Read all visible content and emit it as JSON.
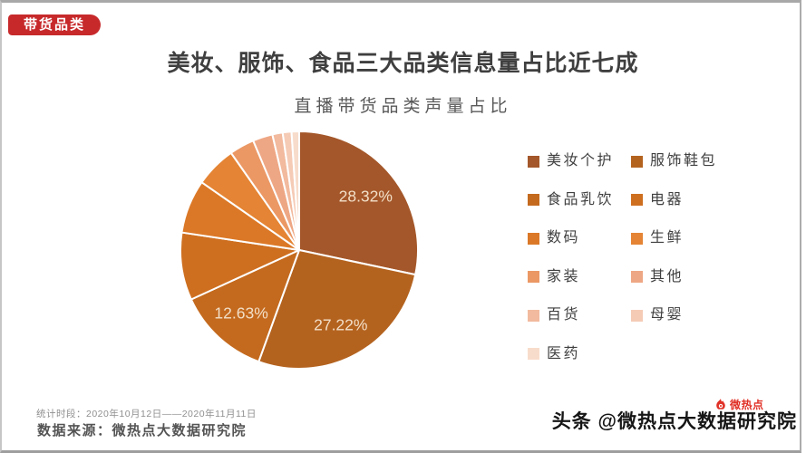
{
  "page": {
    "badge": "带货品类",
    "title": "美妆、服饰、食品三大品类信息量占比近七成",
    "footer": {
      "period": "统计时段：2020年10月12日——2020年11月11日",
      "source": "数据来源：微热点大数据研究院"
    },
    "watermark": {
      "logo_text": "微热点",
      "handle": "头条 @微热点大数据研究院"
    },
    "colors": {
      "badge_red": "#C7292B",
      "logo_red": "#E03127",
      "title_gray": "#3F3F3F",
      "subtitle_gray": "#595959"
    }
  },
  "chart_data": {
    "type": "pie",
    "title": "直播带货品类声量占比",
    "legend_position": "right",
    "legend_columns": 2,
    "categories": [
      "美妆个护",
      "服饰鞋包",
      "食品乳饮",
      "电器",
      "数码",
      "生鲜",
      "家装",
      "其他",
      "百货",
      "母婴",
      "医药"
    ],
    "values": [
      28.32,
      27.22,
      12.63,
      9.2,
      7.3,
      5.6,
      3.4,
      2.7,
      1.4,
      1.2,
      1.03
    ],
    "data_labels": [
      "28.32%",
      "27.22%",
      "12.63%",
      "",
      "",
      "",
      "",
      "",
      "",
      "",
      ""
    ],
    "colors": [
      "#A4572A",
      "#B4631F",
      "#C46A1E",
      "#CE6F20",
      "#DB7827",
      "#E48434",
      "#EB9865",
      "#EEA784",
      "#F2BA9E",
      "#F5CBB6",
      "#F8DCCB"
    ],
    "data_label_color": "#F2DFC8"
  }
}
